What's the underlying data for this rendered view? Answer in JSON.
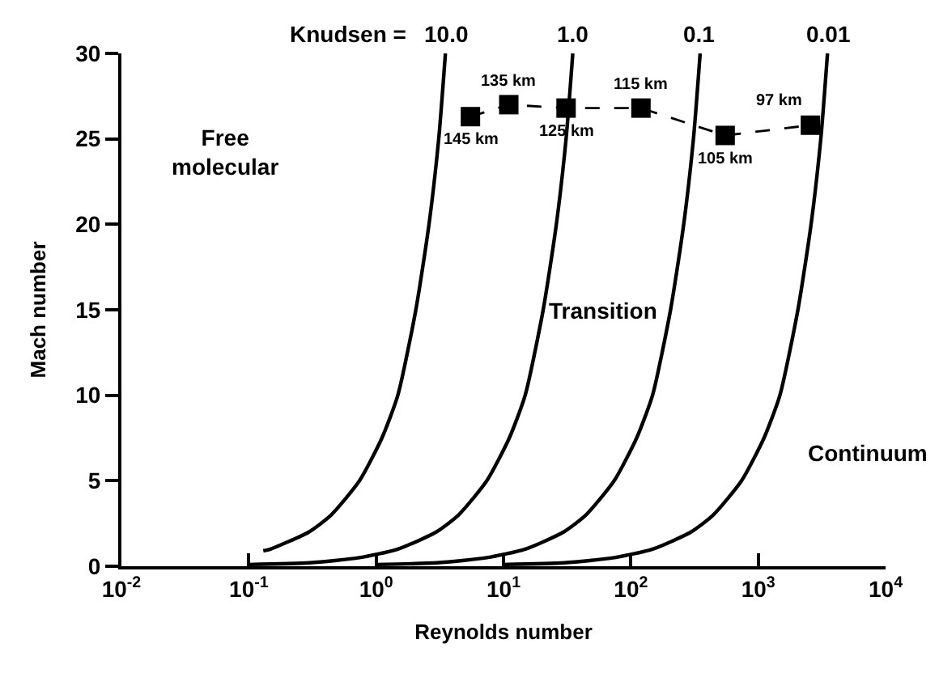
{
  "chart_data": {
    "type": "line",
    "xlabel": "Reynolds number",
    "ylabel": "Mach number",
    "log": "x",
    "xlim": [
      0.01,
      10000
    ],
    "xticks": [
      {
        "value": 0.01,
        "label": "10$^{-2}$"
      },
      {
        "value": 0.1,
        "label": "10$^{-1}$"
      },
      {
        "value": 1,
        "label": "10$^{0}$"
      },
      {
        "value": 10,
        "label": "10$^{1}$"
      },
      {
        "value": 100,
        "label": "10$^{2}$"
      },
      {
        "value": 1000,
        "label": "10$^{3}$"
      },
      {
        "value": 10000,
        "label": "10$^{4}$"
      }
    ],
    "ylim": [
      0,
      30
    ],
    "yticks": [
      0,
      5,
      10,
      15,
      20,
      25,
      30
    ],
    "grid": false,
    "marker": "none",
    "line_style": "solid",
    "annotations": [
      "Knudsen =",
      "Free\nmolecular",
      "Transition",
      "Continuum",
      {
        "text": "145 km",
        "x": 5.5,
        "y": 26.3
      },
      {
        "text": "135 km",
        "x": 11,
        "y": 27.0
      },
      {
        "text": "125 km",
        "x": 31,
        "y": 26.8
      },
      {
        "text": "115 km",
        "x": 120,
        "y": 26.8
      },
      {
        "text": "105 km",
        "x": 550,
        "y": 25.2
      },
      {
        "text": "97 km",
        "x": 2570,
        "y": 25.8
      }
    ],
    "series": [
      {
        "name": "10.0",
        "color": "#000000",
        "x": [
          0.13,
          0.148,
          0.296,
          0.444,
          0.74,
          1.11,
          1.48,
          2.05,
          2.6,
          3.1,
          3.5
        ],
        "values": [
          0.9,
          1,
          2,
          3,
          5,
          7.5,
          10,
          15,
          20,
          25,
          30
        ]
      },
      {
        "name": "1.0",
        "color": "#000000",
        "x": [
          0.1,
          0.3,
          0.74,
          1.48,
          2.96,
          4.44,
          7.4,
          11.1,
          14.8,
          20.5,
          26,
          31,
          35
        ],
        "values": [
          0.1,
          0.2,
          0.5,
          1,
          2,
          3,
          5,
          7.5,
          10,
          15,
          20,
          25,
          30
        ]
      },
      {
        "name": "0.1",
        "color": "#000000",
        "x": [
          1,
          3,
          7.4,
          14.8,
          29.6,
          44.4,
          74,
          111,
          148,
          205,
          260,
          310,
          350
        ],
        "values": [
          0.1,
          0.2,
          0.5,
          1,
          2,
          3,
          5,
          7.5,
          10,
          15,
          20,
          25,
          30
        ]
      },
      {
        "name": "0.01",
        "color": "#000000",
        "x": [
          10,
          30,
          74,
          148,
          296,
          444,
          740,
          1110,
          1480,
          2050,
          2600,
          3100,
          3500
        ],
        "values": [
          0.1,
          0.2,
          0.5,
          1,
          2,
          3,
          5,
          7.5,
          10,
          15,
          20,
          25,
          30
        ]
      },
      {
        "type": "scatter",
        "color": "#000000",
        "marker": "square",
        "line_style": "dashed",
        "x": [
          5.5,
          11,
          31,
          120,
          550,
          2570
        ],
        "values": [
          26.3,
          27.0,
          26.8,
          26.8,
          25.2,
          25.8
        ]
      }
    ]
  }
}
